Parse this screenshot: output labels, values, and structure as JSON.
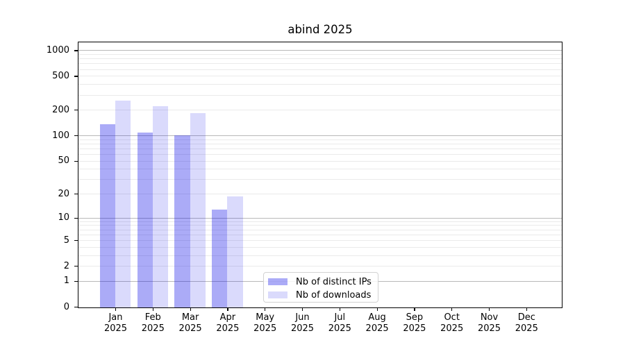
{
  "title": "abind 2025",
  "chart_data": {
    "type": "bar",
    "title": "abind 2025",
    "categories": [
      "Jan",
      "Feb",
      "Mar",
      "Apr",
      "May",
      "Jun",
      "Jul",
      "Aug",
      "Sep",
      "Oct",
      "Nov",
      "Dec"
    ],
    "year": "2025",
    "series": [
      {
        "name": "Nb of distinct IPs",
        "color": "rgba(8,8,232,0.34)",
        "values": [
          139,
          110,
          102,
          13,
          0,
          0,
          0,
          0,
          0,
          0,
          0,
          0
        ]
      },
      {
        "name": "Nb of downloads",
        "color": "rgba(8,8,232,0.15)",
        "values": [
          264,
          226,
          188,
          19,
          0,
          0,
          0,
          0,
          0,
          0,
          0,
          0
        ]
      }
    ],
    "xlabel": "",
    "ylabel": "",
    "yscale": "log1p",
    "yticks": [
      1000,
      500,
      200,
      100,
      50,
      20,
      10,
      5,
      2,
      1,
      0
    ],
    "ylim": [
      0,
      1300
    ],
    "grid": "horizontal major+minor (log decades)",
    "legend_position": "lower center",
    "colors": {
      "bar_ips": "rgba(8,8,232,0.34)",
      "bar_downloads": "rgba(8,8,232,0.15)",
      "grid_major": "#b8b8b8",
      "grid_minor": "#eaeaea",
      "spine": "#000000",
      "background": "#ffffff"
    }
  }
}
